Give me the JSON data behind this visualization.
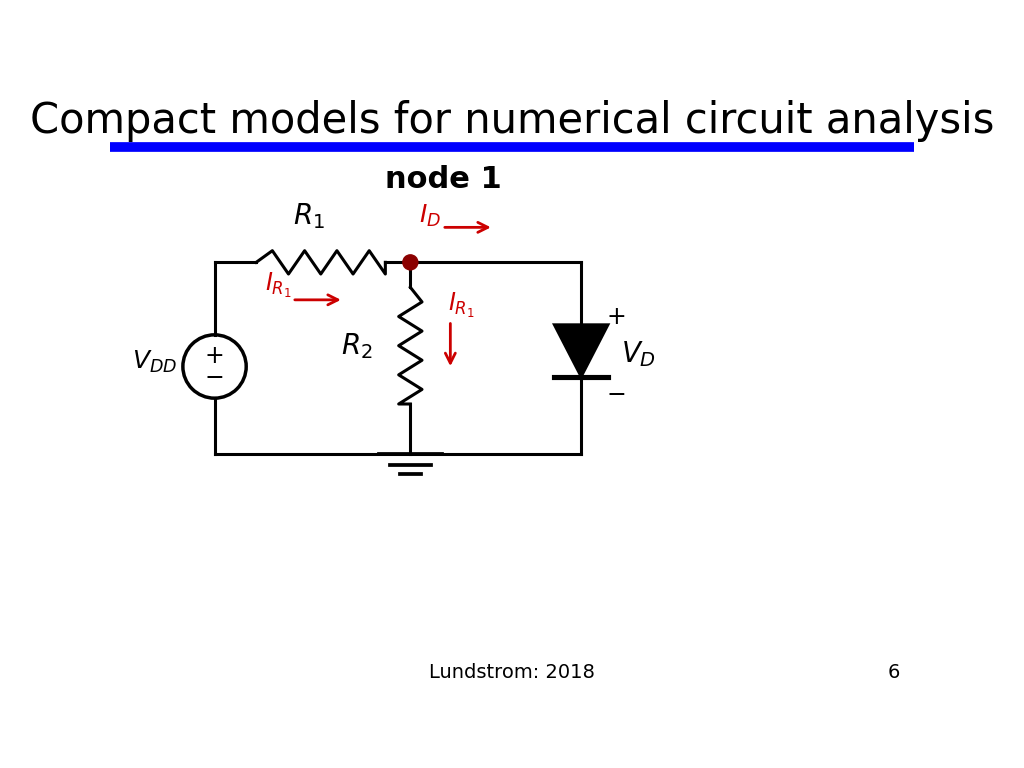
{
  "title": "Compact models for numerical circuit analysis",
  "subtitle": "node 1",
  "footer": "Lundstrom: 2018",
  "page_number": "6",
  "title_color": "#000000",
  "blue_line_color": "#0000FF",
  "circuit_color": "#000000",
  "red_color": "#CC0000",
  "node_dot_color": "#8B0000",
  "background_color": "#FFFFFF",
  "lw": 2.2
}
